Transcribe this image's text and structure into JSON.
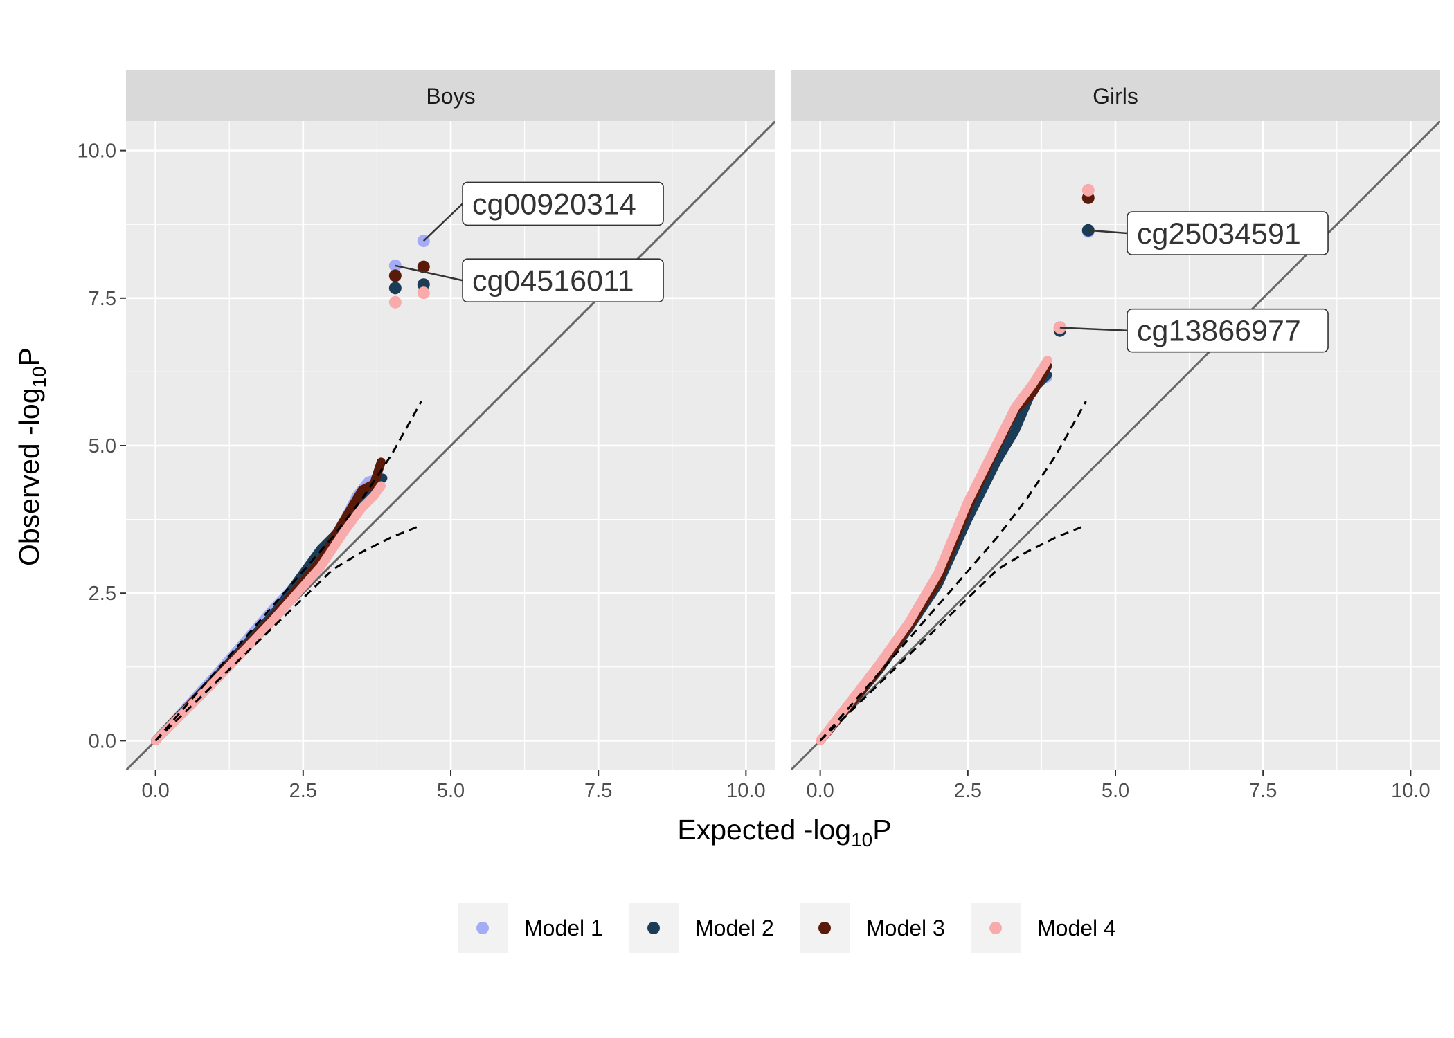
{
  "chart_data": {
    "type": "scatter",
    "subtype": "qq-plot",
    "xlabel": "Expected -log10P",
    "ylabel": "Observed -log10P",
    "xlabel_parts": {
      "pre": "Expected -log",
      "sub": "10",
      "post": "P"
    },
    "ylabel_parts": {
      "pre": "Observed -log",
      "sub": "10",
      "post": "P"
    },
    "xlim": [
      -0.5,
      10.5
    ],
    "ylim": [
      -0.5,
      10.5
    ],
    "x_ticks": [
      "0.0",
      "2.5",
      "5.0",
      "7.5",
      "10.0"
    ],
    "y_ticks": [
      "0.0",
      "2.5",
      "5.0",
      "7.5",
      "10.0"
    ],
    "grid": true,
    "reference_line": "y = x",
    "confidence_band": "dashed",
    "legend_position": "bottom",
    "series": [
      {
        "name": "Model 1",
        "color": "#a3acf5"
      },
      {
        "name": "Model 2",
        "color": "#1b3c56"
      },
      {
        "name": "Model 3",
        "color": "#5a1a0a"
      },
      {
        "name": "Model 4",
        "color": "#f9aaaa"
      }
    ],
    "panels": [
      {
        "title": "Boys",
        "confidence_band": {
          "upper": [
            [
              3.0,
              3.45
            ],
            [
              3.5,
              4.1
            ],
            [
              4.0,
              4.85
            ],
            [
              4.5,
              5.75
            ]
          ],
          "lower": [
            [
              3.0,
              2.9
            ],
            [
              3.5,
              3.2
            ],
            [
              4.0,
              3.45
            ],
            [
              4.5,
              3.65
            ]
          ]
        },
        "curves": [
          {
            "series": "Model 1",
            "points": [
              [
                0,
                0
              ],
              [
                1,
                1.1
              ],
              [
                2,
                2.25
              ],
              [
                2.8,
                3.1
              ],
              [
                3.2,
                3.75
              ],
              [
                3.4,
                4.15
              ],
              [
                3.6,
                4.4
              ],
              [
                3.8,
                4.45
              ]
            ]
          },
          {
            "series": "Model 2",
            "points": [
              [
                0,
                0
              ],
              [
                1,
                1.05
              ],
              [
                2,
                2.15
              ],
              [
                2.8,
                3.25
              ],
              [
                3.2,
                3.65
              ],
              [
                3.4,
                4.0
              ],
              [
                3.6,
                4.25
              ],
              [
                3.85,
                4.45
              ]
            ]
          },
          {
            "series": "Model 3",
            "points": [
              [
                0,
                0
              ],
              [
                1,
                1.03
              ],
              [
                2,
                2.1
              ],
              [
                2.8,
                3.05
              ],
              [
                3.2,
                3.75
              ],
              [
                3.5,
                4.25
              ],
              [
                3.7,
                4.35
              ],
              [
                3.82,
                4.72
              ]
            ]
          },
          {
            "series": "Model 4",
            "points": [
              [
                0,
                0
              ],
              [
                1,
                1.0
              ],
              [
                2,
                2.05
              ],
              [
                2.8,
                2.95
              ],
              [
                3.2,
                3.55
              ],
              [
                3.5,
                3.95
              ],
              [
                3.7,
                4.15
              ],
              [
                3.82,
                4.32
              ]
            ]
          }
        ],
        "top_points": [
          {
            "series": "Model 1",
            "x": 4.06,
            "y": 8.05
          },
          {
            "series": "Model 1",
            "x": 4.54,
            "y": 8.47
          },
          {
            "series": "Model 2",
            "x": 4.06,
            "y": 7.67
          },
          {
            "series": "Model 2",
            "x": 4.54,
            "y": 7.73
          },
          {
            "series": "Model 3",
            "x": 4.06,
            "y": 7.88
          },
          {
            "series": "Model 3",
            "x": 4.54,
            "y": 8.03
          },
          {
            "series": "Model 4",
            "x": 4.06,
            "y": 7.43
          },
          {
            "series": "Model 4",
            "x": 4.54,
            "y": 7.59
          }
        ],
        "labels": [
          {
            "text": "cg00920314",
            "x": 4.54,
            "y": 8.47,
            "lx": 5.2,
            "ly": 9.1
          },
          {
            "text": "cg04516011",
            "x": 4.06,
            "y": 8.05,
            "lx": 5.2,
            "ly": 7.8
          }
        ]
      },
      {
        "title": "Girls",
        "confidence_band": {
          "upper": [
            [
              3.0,
              3.45
            ],
            [
              3.5,
              4.1
            ],
            [
              4.0,
              4.85
            ],
            [
              4.5,
              5.75
            ]
          ],
          "lower": [
            [
              3.0,
              2.9
            ],
            [
              3.5,
              3.2
            ],
            [
              4.0,
              3.45
            ],
            [
              4.5,
              3.65
            ]
          ]
        },
        "curves": [
          {
            "series": "Model 1",
            "points": [
              [
                0,
                0
              ],
              [
                1,
                1.25
              ],
              [
                1.5,
                1.95
              ],
              [
                2,
                2.75
              ],
              [
                2.5,
                3.95
              ],
              [
                3,
                5.0
              ],
              [
                3.3,
                5.45
              ],
              [
                3.6,
                6.05
              ],
              [
                3.85,
                6.15
              ]
            ]
          },
          {
            "series": "Model 2",
            "points": [
              [
                0,
                0
              ],
              [
                1,
                1.2
              ],
              [
                1.5,
                1.9
              ],
              [
                2,
                2.65
              ],
              [
                2.5,
                3.75
              ],
              [
                3,
                4.75
              ],
              [
                3.3,
                5.25
              ],
              [
                3.6,
                5.95
              ],
              [
                3.85,
                6.2
              ]
            ]
          },
          {
            "series": "Model 3",
            "points": [
              [
                0,
                0
              ],
              [
                1,
                1.22
              ],
              [
                1.5,
                1.93
              ],
              [
                2,
                2.72
              ],
              [
                2.5,
                3.95
              ],
              [
                3,
                5.0
              ],
              [
                3.3,
                5.6
              ],
              [
                3.6,
                5.9
              ],
              [
                3.85,
                6.35
              ]
            ]
          },
          {
            "series": "Model 4",
            "points": [
              [
                0,
                0
              ],
              [
                1,
                1.3
              ],
              [
                1.5,
                2.0
              ],
              [
                2,
                2.85
              ],
              [
                2.5,
                4.05
              ],
              [
                3,
                5.05
              ],
              [
                3.3,
                5.65
              ],
              [
                3.6,
                6.05
              ],
              [
                3.85,
                6.45
              ]
            ]
          }
        ],
        "top_points": [
          {
            "series": "Model 1",
            "x": 4.54,
            "y": 8.63
          },
          {
            "series": "Model 2",
            "x": 4.54,
            "y": 8.65
          },
          {
            "series": "Model 3",
            "x": 4.54,
            "y": 9.2
          },
          {
            "series": "Model 4",
            "x": 4.54,
            "y": 9.33
          },
          {
            "series": "Model 1",
            "x": 4.06,
            "y": 6.97
          },
          {
            "series": "Model 2",
            "x": 4.06,
            "y": 6.95
          },
          {
            "series": "Model 3",
            "x": 4.06,
            "y": 7.0
          },
          {
            "series": "Model 4",
            "x": 4.06,
            "y": 7.0
          }
        ],
        "labels": [
          {
            "text": "cg25034591",
            "x": 4.54,
            "y": 8.65,
            "lx": 5.2,
            "ly": 8.6
          },
          {
            "text": "cg13866977",
            "x": 4.06,
            "y": 7.0,
            "lx": 5.2,
            "ly": 6.95
          }
        ]
      }
    ]
  }
}
